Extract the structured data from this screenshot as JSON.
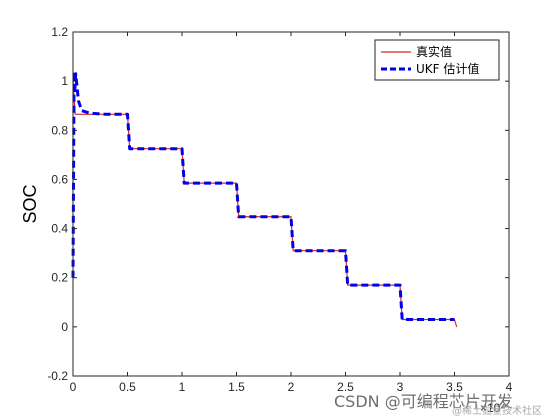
{
  "chart_data": {
    "type": "line",
    "title": "",
    "xlabel": "",
    "ylabel": "SOC",
    "xlim": [
      0,
      4
    ],
    "ylim": [
      -0.2,
      1.2
    ],
    "x_exponent_label": "×10⁴",
    "x_ticks": [
      0,
      0.5,
      1,
      1.5,
      2,
      2.5,
      3,
      3.5,
      4
    ],
    "x_tick_labels": [
      "0",
      "0.5",
      "1",
      "1.5",
      "2",
      "2.5",
      "3",
      "3.5",
      "4"
    ],
    "y_ticks": [
      -0.2,
      0,
      0.2,
      0.4,
      0.6,
      0.8,
      1,
      1.2
    ],
    "y_tick_labels": [
      "-0.2",
      "0",
      "0.2",
      "0.4",
      "0.6",
      "0.8",
      "1",
      "1.2"
    ],
    "grid": false,
    "legend_position": "top-right",
    "series": [
      {
        "name": "真实值",
        "color": "#d62728",
        "style": "solid",
        "x": [
          0,
          0.02,
          0.5,
          0.52,
          1.0,
          1.02,
          1.5,
          1.52,
          2.0,
          2.02,
          2.5,
          2.52,
          3.0,
          3.02,
          3.5,
          3.52
        ],
        "y": [
          1.0,
          0.865,
          0.865,
          0.725,
          0.725,
          0.585,
          0.585,
          0.448,
          0.448,
          0.31,
          0.31,
          0.17,
          0.17,
          0.03,
          0.03,
          0.0
        ]
      },
      {
        "name": "UKF 估计值",
        "color": "#0000ee",
        "style": "dashed",
        "x": [
          0,
          0.01,
          0.015,
          0.025,
          0.05,
          0.08,
          0.15,
          0.3,
          0.5,
          0.52,
          1.0,
          1.02,
          1.5,
          1.52,
          2.0,
          2.02,
          2.5,
          2.52,
          3.0,
          3.02,
          3.5
        ],
        "y": [
          0.2,
          1.04,
          0.95,
          1.03,
          0.92,
          0.88,
          0.87,
          0.865,
          0.865,
          0.725,
          0.725,
          0.585,
          0.585,
          0.448,
          0.448,
          0.31,
          0.31,
          0.17,
          0.17,
          0.03,
          0.03
        ]
      }
    ]
  },
  "watermark": {
    "main": "CSDN @可编程芯片开发",
    "sub": "@稀土掘金技术社区"
  }
}
